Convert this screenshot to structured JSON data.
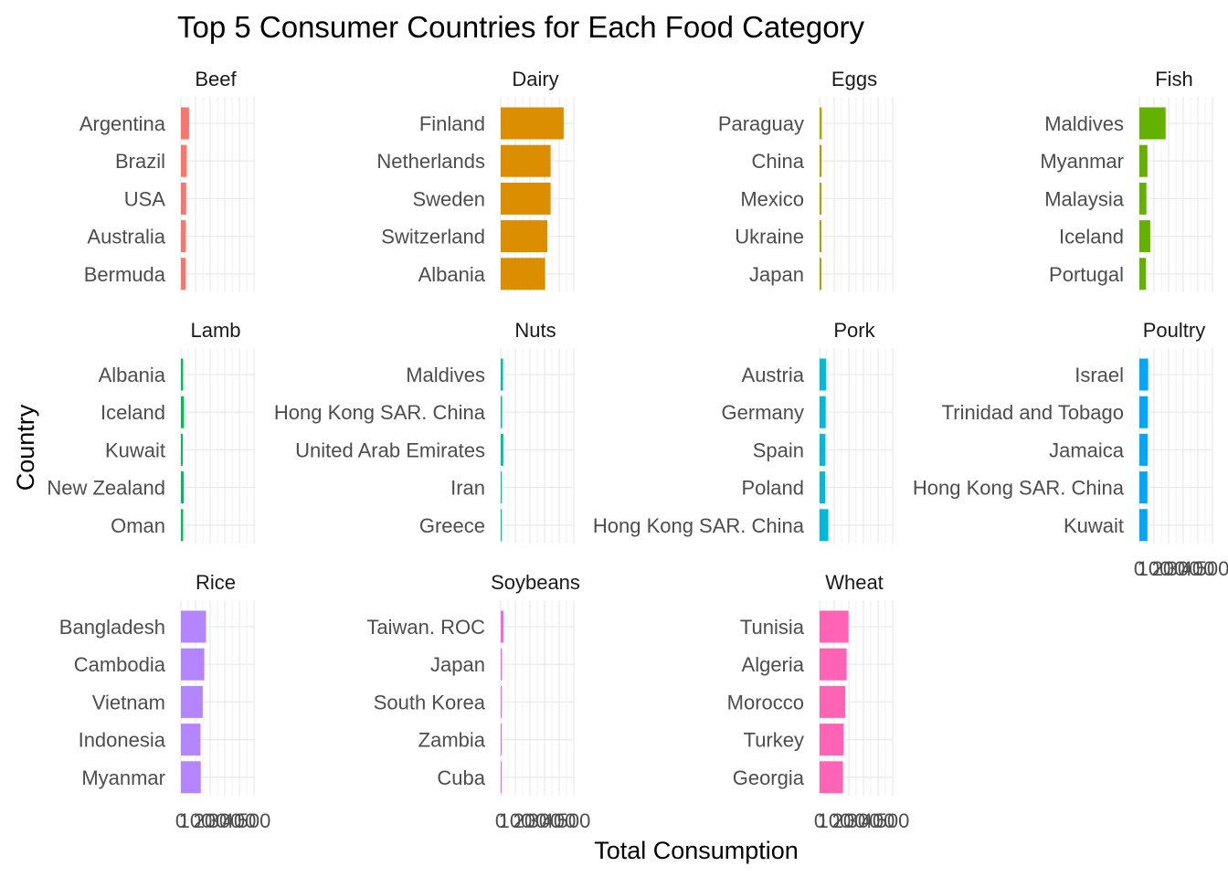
{
  "chart_data": {
    "type": "bar",
    "orientation": "horizontal",
    "title": "Top 5 Consumer Countries for Each Food Category",
    "xlabel": "Total Consumption",
    "ylabel": "Country",
    "xlim": [
      0,
      500
    ],
    "x_tick_labels": [
      "0",
      "100",
      "200",
      "300",
      "400",
      "500"
    ],
    "grid": true,
    "legend": "none",
    "facets": [
      {
        "name": "Beef",
        "color": "#F8766D",
        "categories": [
          "Argentina",
          "Brazil",
          "USA",
          "Australia",
          "Bermuda"
        ],
        "values": [
          55.5,
          40.1,
          36.2,
          33.9,
          33.2
        ]
      },
      {
        "name": "Dairy",
        "color": "#DB8E00",
        "categories": [
          "Finland",
          "Netherlands",
          "Sweden",
          "Switzerland",
          "Albania"
        ],
        "values": [
          430.8,
          341.5,
          341.5,
          318.9,
          303.7
        ]
      },
      {
        "name": "Eggs",
        "color": "#AEA200",
        "categories": [
          "Paraguay",
          "China",
          "Mexico",
          "Ukraine",
          "Japan"
        ],
        "values": [
          15.0,
          14.0,
          13.5,
          13.0,
          13.0
        ]
      },
      {
        "name": "Fish",
        "color": "#64B200",
        "categories": [
          "Maldives",
          "Myanmar",
          "Malaysia",
          "Iceland",
          "Portugal"
        ],
        "values": [
          179.7,
          55.0,
          48.0,
          74.4,
          45.0
        ]
      },
      {
        "name": "Lamb",
        "color": "#00BD5C",
        "categories": [
          "Albania",
          "Iceland",
          "Kuwait",
          "New Zealand",
          "Oman"
        ],
        "values": [
          15.3,
          21.1,
          12.5,
          18.9,
          15.4
        ]
      },
      {
        "name": "Nuts",
        "color": "#00C1A7",
        "categories": [
          "Maldives",
          "Hong Kong SAR. China",
          "United Arab Emirates",
          "Iran",
          "Greece"
        ],
        "values": [
          16.0,
          10.0,
          18.0,
          8.0,
          8.0
        ]
      },
      {
        "name": "Pork",
        "color": "#00BADE",
        "categories": [
          "Austria",
          "Germany",
          "Spain",
          "Poland",
          "Hong Kong SAR. China"
        ],
        "values": [
          45.0,
          42.0,
          40.0,
          39.0,
          60.0
        ]
      },
      {
        "name": "Poultry",
        "color": "#00A6FF",
        "categories": [
          "Israel",
          "Trinidad and Tobago",
          "Jamaica",
          "Hong Kong SAR. China",
          "Kuwait"
        ],
        "values": [
          60.0,
          58.0,
          57.0,
          55.0,
          55.0
        ]
      },
      {
        "name": "Rice",
        "color": "#B385FF",
        "categories": [
          "Bangladesh",
          "Cambodia",
          "Vietnam",
          "Indonesia",
          "Myanmar"
        ],
        "values": [
          171.7,
          160.0,
          149.0,
          134.0,
          136.0
        ]
      },
      {
        "name": "Soybeans",
        "color": "#EF67EB",
        "categories": [
          "Taiwan. ROC",
          "Japan",
          "South Korea",
          "Zambia",
          "Cuba"
        ],
        "values": [
          19.0,
          9.0,
          8.0,
          7.0,
          7.0
        ]
      },
      {
        "name": "Wheat",
        "color": "#FF63B6",
        "categories": [
          "Tunisia",
          "Algeria",
          "Morocco",
          "Turkey",
          "Georgia"
        ],
        "values": [
          197.5,
          185.0,
          175.0,
          165.0,
          160.0
        ]
      }
    ]
  }
}
